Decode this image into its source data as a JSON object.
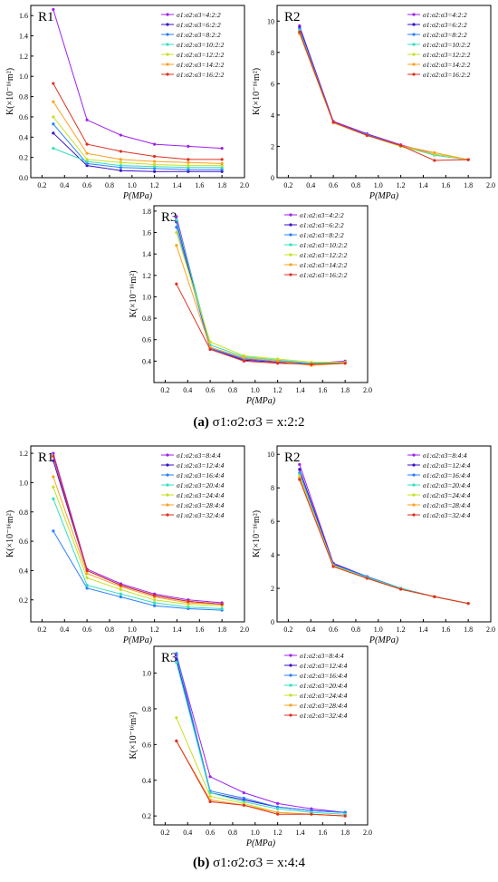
{
  "captions": {
    "a_label": "(a)",
    "a_text": "σ1:σ2:σ3 = x:2:2",
    "b_label": "(b)",
    "b_text": "σ1:σ2:σ3 = x:4:4"
  },
  "colors": [
    "#a020f0",
    "#3a10c8",
    "#2a7fff",
    "#30e0c0",
    "#c8e020",
    "#ffa020",
    "#e03020"
  ],
  "chart_data": [
    {
      "panel": "a",
      "title": "R1",
      "type": "line",
      "xlabel": "P(MPa)",
      "ylabel": "K(×10⁻¹⁶m²)",
      "xlim": [
        0.1,
        2.0
      ],
      "ylim": [
        0,
        1.7
      ],
      "xticks": [
        0.2,
        0.4,
        0.6,
        0.8,
        1.0,
        1.2,
        1.4,
        1.6,
        1.8,
        2.0
      ],
      "yticks": [
        0.0,
        0.2,
        0.4,
        0.6,
        0.8,
        1.0,
        1.2,
        1.4,
        1.6
      ],
      "x": [
        0.3,
        0.6,
        0.9,
        1.2,
        1.5,
        1.8
      ],
      "series": [
        {
          "name": "σ1:σ2:σ3=4:2:2",
          "values": [
            1.66,
            0.57,
            0.42,
            0.33,
            0.31,
            0.29
          ]
        },
        {
          "name": "σ1:σ2:σ3=6:2:2",
          "values": [
            0.44,
            0.12,
            0.07,
            0.06,
            0.06,
            0.06
          ]
        },
        {
          "name": "σ1:σ2:σ3=8:2:2",
          "values": [
            0.53,
            0.14,
            0.1,
            0.09,
            0.08,
            0.08
          ]
        },
        {
          "name": "σ1:σ2:σ3=10:2:2",
          "values": [
            0.29,
            0.16,
            0.12,
            0.11,
            0.1,
            0.1
          ]
        },
        {
          "name": "σ1:σ2:σ3=12:2:2",
          "values": [
            0.6,
            0.18,
            0.15,
            0.13,
            0.12,
            0.12
          ]
        },
        {
          "name": "σ1:σ2:σ3=14:2:2",
          "values": [
            0.75,
            0.24,
            0.18,
            0.16,
            0.15,
            0.14
          ]
        },
        {
          "name": "σ1:σ2:σ3=16:2:2",
          "values": [
            0.93,
            0.33,
            0.26,
            0.21,
            0.18,
            0.18
          ]
        }
      ]
    },
    {
      "panel": "a",
      "title": "R2",
      "type": "line",
      "xlabel": "P(MPa)",
      "ylabel": "K(×10⁻¹⁶m²)",
      "xlim": [
        0.1,
        2.0
      ],
      "ylim": [
        0,
        11
      ],
      "xticks": [
        0.2,
        0.4,
        0.6,
        0.8,
        1.0,
        1.2,
        1.4,
        1.6,
        1.8,
        2.0
      ],
      "yticks": [
        0,
        2,
        4,
        6,
        8,
        10
      ],
      "x": [
        0.3,
        0.6,
        0.9,
        1.2,
        1.5,
        1.8
      ],
      "series": [
        {
          "name": "σ1:σ2:σ3=4:2:2",
          "values": [
            9.7,
            3.6,
            2.8,
            2.1,
            1.5,
            1.15
          ]
        },
        {
          "name": "σ1:σ2:σ3=6:2:2",
          "values": [
            9.6,
            3.55,
            2.75,
            2.05,
            1.45,
            1.15
          ]
        },
        {
          "name": "σ1:σ2:σ3=8:2:2",
          "values": [
            9.5,
            3.55,
            2.75,
            2.05,
            1.45,
            1.15
          ]
        },
        {
          "name": "σ1:σ2:σ3=10:2:2",
          "values": [
            9.4,
            3.5,
            2.7,
            2.0,
            1.45,
            1.15
          ]
        },
        {
          "name": "σ1:σ2:σ3=12:2:2",
          "values": [
            9.3,
            3.5,
            2.7,
            2.0,
            1.5,
            1.15
          ]
        },
        {
          "name": "σ1:σ2:σ3=14:2:2",
          "values": [
            9.2,
            3.5,
            2.7,
            2.05,
            1.6,
            1.15
          ]
        },
        {
          "name": "σ1:σ2:σ3=16:2:2",
          "values": [
            9.3,
            3.55,
            2.7,
            2.05,
            1.1,
            1.15
          ]
        }
      ]
    },
    {
      "panel": "a",
      "title": "R3",
      "type": "line",
      "xlabel": "P(MPa)",
      "ylabel": "K(×10⁻¹⁶m²)",
      "xlim": [
        0.1,
        2.0
      ],
      "ylim": [
        0.2,
        1.85
      ],
      "xticks": [
        0.2,
        0.4,
        0.6,
        0.8,
        1.0,
        1.2,
        1.4,
        1.6,
        1.8,
        2.0
      ],
      "yticks": [
        0.4,
        0.6,
        0.8,
        1.0,
        1.2,
        1.4,
        1.6,
        1.8
      ],
      "x": [
        0.3,
        0.6,
        0.9,
        1.2,
        1.5,
        1.8
      ],
      "series": [
        {
          "name": "σ1:σ2:σ3=4:2:2",
          "values": [
            1.75,
            0.52,
            0.42,
            0.4,
            0.38,
            0.4
          ]
        },
        {
          "name": "σ1:σ2:σ3=6:2:2",
          "values": [
            1.7,
            0.51,
            0.41,
            0.39,
            0.37,
            0.39
          ]
        },
        {
          "name": "σ1:σ2:σ3=8:2:2",
          "values": [
            1.65,
            0.52,
            0.42,
            0.4,
            0.37,
            0.39
          ]
        },
        {
          "name": "σ1:σ2:σ3=10:2:2",
          "values": [
            1.72,
            0.55,
            0.44,
            0.41,
            0.38,
            0.39
          ]
        },
        {
          "name": "σ1:σ2:σ3=12:2:2",
          "values": [
            1.6,
            0.58,
            0.45,
            0.42,
            0.39,
            0.39
          ]
        },
        {
          "name": "σ1:σ2:σ3=14:2:2",
          "values": [
            1.48,
            0.53,
            0.43,
            0.4,
            0.36,
            0.38
          ]
        },
        {
          "name": "σ1:σ2:σ3=16:2:2",
          "values": [
            1.12,
            0.51,
            0.4,
            0.38,
            0.37,
            0.38
          ]
        }
      ]
    },
    {
      "panel": "b",
      "title": "R1",
      "type": "line",
      "xlabel": "P(MPa)",
      "ylabel": "K(×10⁻¹⁶m²)",
      "xlim": [
        0.1,
        2.0
      ],
      "ylim": [
        0.05,
        1.25
      ],
      "xticks": [
        0.2,
        0.4,
        0.6,
        0.8,
        1.0,
        1.2,
        1.4,
        1.6,
        1.8,
        2.0
      ],
      "yticks": [
        0.2,
        0.4,
        0.6,
        0.8,
        1.0,
        1.2
      ],
      "x": [
        0.3,
        0.6,
        0.9,
        1.2,
        1.5,
        1.8
      ],
      "series": [
        {
          "name": "σ1:σ2:σ3=8:4:4",
          "values": [
            1.2,
            0.41,
            0.31,
            0.24,
            0.2,
            0.18
          ]
        },
        {
          "name": "σ1:σ2:σ3=12:4:4",
          "values": [
            1.15,
            0.4,
            0.3,
            0.23,
            0.19,
            0.17
          ]
        },
        {
          "name": "σ1:σ2:σ3=16:4:4",
          "values": [
            0.67,
            0.28,
            0.22,
            0.16,
            0.14,
            0.13
          ]
        },
        {
          "name": "σ1:σ2:σ3=20:4:4",
          "values": [
            0.89,
            0.3,
            0.24,
            0.18,
            0.15,
            0.14
          ]
        },
        {
          "name": "σ1:σ2:σ3=24:4:4",
          "values": [
            0.97,
            0.35,
            0.27,
            0.2,
            0.17,
            0.16
          ]
        },
        {
          "name": "σ1:σ2:σ3=28:4:4",
          "values": [
            1.04,
            0.38,
            0.29,
            0.22,
            0.18,
            0.17
          ]
        },
        {
          "name": "σ1:σ2:σ3=32:4:4",
          "values": [
            1.18,
            0.4,
            0.3,
            0.23,
            0.19,
            0.17
          ]
        }
      ]
    },
    {
      "panel": "b",
      "title": "R2",
      "type": "line",
      "xlabel": "P(MPa)",
      "ylabel": "K(×10⁻¹⁶m²)",
      "xlim": [
        0.1,
        2.0
      ],
      "ylim": [
        0,
        10.5
      ],
      "xticks": [
        0.2,
        0.4,
        0.6,
        0.8,
        1.0,
        1.2,
        1.4,
        1.6,
        1.8,
        2.0
      ],
      "yticks": [
        0,
        2,
        4,
        6,
        8,
        10
      ],
      "x": [
        0.3,
        0.6,
        0.9,
        1.2,
        1.5,
        1.8
      ],
      "series": [
        {
          "name": "σ1:σ2:σ3=8:4:4",
          "values": [
            9.4,
            3.5,
            2.7,
            2.0,
            1.5,
            1.1
          ]
        },
        {
          "name": "σ1:σ2:σ3=12:4:4",
          "values": [
            9.1,
            3.45,
            2.7,
            2.0,
            1.5,
            1.1
          ]
        },
        {
          "name": "σ1:σ2:σ3=16:4:4",
          "values": [
            8.9,
            3.4,
            2.7,
            2.0,
            1.5,
            1.1
          ]
        },
        {
          "name": "σ1:σ2:σ3=20:4:4",
          "values": [
            8.8,
            3.4,
            2.65,
            2.0,
            1.5,
            1.1
          ]
        },
        {
          "name": "σ1:σ2:σ3=24:4:4",
          "values": [
            8.7,
            3.35,
            2.6,
            1.95,
            1.5,
            1.1
          ]
        },
        {
          "name": "σ1:σ2:σ3=28:4:4",
          "values": [
            8.6,
            3.3,
            2.6,
            1.95,
            1.5,
            1.1
          ]
        },
        {
          "name": "σ1:σ2:σ3=32:4:4",
          "values": [
            8.5,
            3.3,
            2.6,
            1.95,
            1.5,
            1.1
          ]
        }
      ]
    },
    {
      "panel": "b",
      "title": "R3",
      "type": "line",
      "xlabel": "P(MPa)",
      "ylabel": "K(×10⁻¹⁶m²)",
      "xlim": [
        0.1,
        2.0
      ],
      "ylim": [
        0.15,
        1.15
      ],
      "xticks": [
        0.2,
        0.4,
        0.6,
        0.8,
        1.0,
        1.2,
        1.4,
        1.6,
        1.8,
        2.0
      ],
      "yticks": [
        0.2,
        0.4,
        0.6,
        0.8,
        1.0
      ],
      "x": [
        0.3,
        0.6,
        0.9,
        1.2,
        1.5,
        1.8
      ],
      "series": [
        {
          "name": "σ1:σ2:σ3=8:4:4",
          "values": [
            1.1,
            0.42,
            0.33,
            0.27,
            0.24,
            0.22
          ]
        },
        {
          "name": "σ1:σ2:σ3=12:4:4",
          "values": [
            1.08,
            0.33,
            0.29,
            0.25,
            0.23,
            0.22
          ]
        },
        {
          "name": "σ1:σ2:σ3=16:4:4",
          "values": [
            1.11,
            0.34,
            0.3,
            0.25,
            0.23,
            0.22
          ]
        },
        {
          "name": "σ1:σ2:σ3=20:4:4",
          "values": [
            1.06,
            0.33,
            0.28,
            0.24,
            0.22,
            0.21
          ]
        },
        {
          "name": "σ1:σ2:σ3=24:4:4",
          "values": [
            0.75,
            0.31,
            0.27,
            0.22,
            0.21,
            0.2
          ]
        },
        {
          "name": "σ1:σ2:σ3=28:4:4",
          "values": [
            0.62,
            0.29,
            0.26,
            0.22,
            0.21,
            0.2
          ]
        },
        {
          "name": "σ1:σ2:σ3=32:4:4",
          "values": [
            0.62,
            0.28,
            0.26,
            0.21,
            0.21,
            0.2
          ]
        }
      ]
    }
  ]
}
